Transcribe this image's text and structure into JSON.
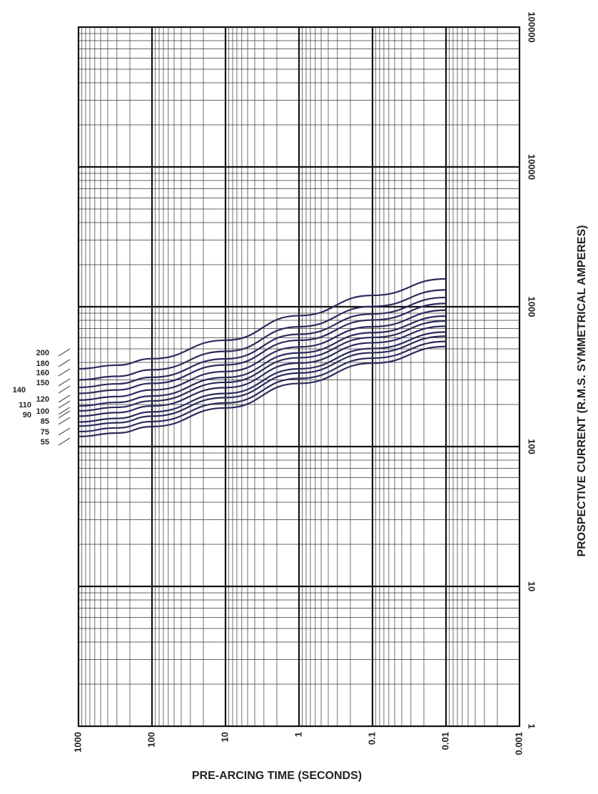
{
  "chart_data": {
    "type": "line",
    "x_label": "PRE-ARCING TIME (SECONDS)",
    "y_label": "PROSPECTIVE CURRENT   (R.M.S. SYMMETRICAL AMPERES)",
    "x_scale": "log",
    "y_scale": "log",
    "xlim": [
      1000,
      0.001
    ],
    "ylim": [
      1,
      100000
    ],
    "xticks": [
      1000,
      100,
      10,
      1,
      0.1,
      0.01,
      0.001
    ],
    "yticks": [
      1,
      10,
      100,
      1000,
      10000,
      100000
    ],
    "grid": true,
    "x": [
      1000,
      300,
      100,
      10,
      1,
      0.1,
      0.01
    ],
    "series": [
      {
        "name": "55",
        "color": "#2b2a5c",
        "values": [
          118,
          125,
          139,
          189,
          283,
          395,
          520
        ]
      },
      {
        "name": "75",
        "color": "#2b2a5c",
        "values": [
          128,
          136,
          151,
          205,
          307,
          429,
          565
        ]
      },
      {
        "name": "85",
        "color": "#2b2a5c",
        "values": [
          140,
          148,
          165,
          224,
          336,
          469,
          616
        ]
      },
      {
        "name": "90",
        "color": "#2b2a5c",
        "values": [
          150,
          159,
          177,
          240,
          360,
          503,
          660
        ]
      },
      {
        "name": "100",
        "color": "#2b2a5c",
        "values": [
          165,
          175,
          195,
          264,
          396,
          553,
          726
        ]
      },
      {
        "name": "110",
        "color": "#2b2a5c",
        "values": [
          180,
          191,
          212,
          288,
          432,
          603,
          792
        ]
      },
      {
        "name": "120",
        "color": "#2b2a5c",
        "values": [
          195,
          207,
          230,
          312,
          468,
          653,
          858
        ]
      },
      {
        "name": "140",
        "color": "#2b2a5c",
        "values": [
          215,
          228,
          254,
          344,
          516,
          720,
          946
        ]
      },
      {
        "name": "150",
        "color": "#2b2a5c",
        "values": [
          240,
          254,
          283,
          384,
          576,
          804,
          1056
        ]
      },
      {
        "name": "160",
        "color": "#2b2a5c",
        "values": [
          265,
          281,
          313,
          424,
          636,
          888,
          1166
        ]
      },
      {
        "name": "180",
        "color": "#2b2a5c",
        "values": [
          300,
          318,
          354,
          480,
          720,
          1005,
          1320
        ]
      },
      {
        "name": "200",
        "color": "#2b2a5c",
        "values": [
          360,
          382,
          425,
          576,
          864,
          1206,
          1584
        ]
      }
    ]
  }
}
